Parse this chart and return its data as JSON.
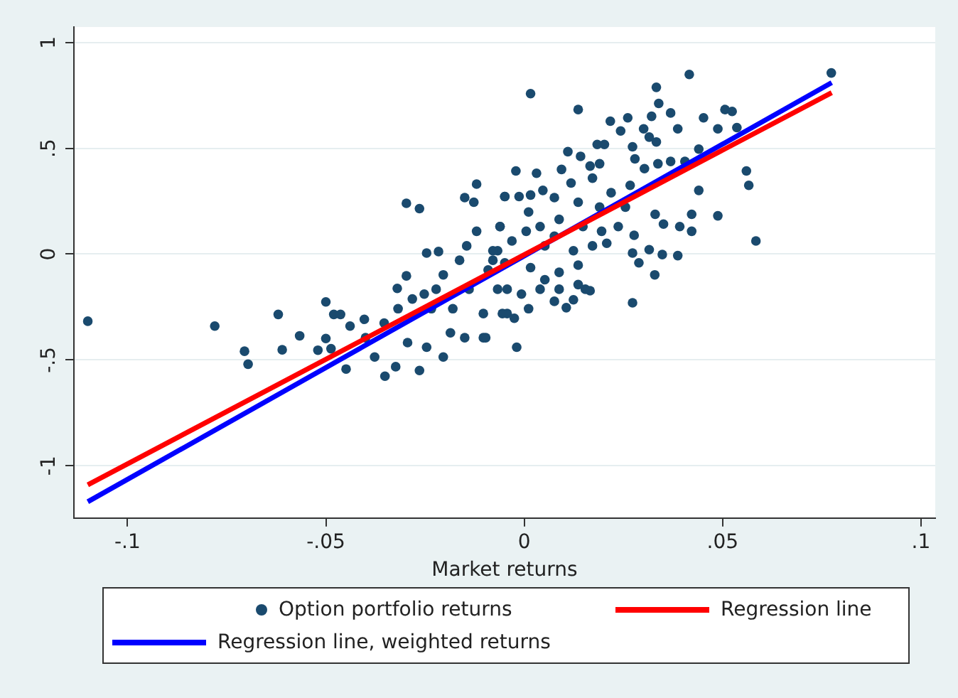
{
  "chart_data": {
    "type": "scatter",
    "xlabel": "Market returns",
    "xlim": [
      -0.1135,
      0.1036
    ],
    "ylim": [
      -1.247,
      1.073
    ],
    "xticks": [
      {
        "value": -0.1,
        "label": "-.1"
      },
      {
        "value": -0.05,
        "label": "-.05"
      },
      0,
      {
        "value": 0.05,
        "label": ".05"
      },
      {
        "value": 0.1,
        "label": ".1"
      }
    ],
    "yticks": [
      -1,
      {
        "value": -0.5,
        "label": "-.5"
      },
      0,
      {
        "value": 0.5,
        "label": ".5"
      },
      1
    ],
    "grid": "y",
    "legend": "bottom",
    "series": [
      {
        "name": "Option portfolio returns",
        "marker": "circle",
        "color": "#1a4a6e",
        "x": [
          -0.11,
          -0.078,
          -0.0705,
          -0.0696,
          -0.062,
          -0.061,
          -0.0566,
          -0.052,
          -0.05,
          -0.05,
          -0.048,
          -0.0463,
          -0.0487,
          -0.0449,
          -0.0439,
          -0.0403,
          -0.0351,
          -0.0324,
          -0.032,
          -0.0297,
          -0.0297,
          -0.0264,
          -0.0264,
          -0.0252,
          -0.0246,
          -0.0216,
          -0.0204,
          -0.0204,
          -0.0186,
          -0.015,
          -0.012,
          -0.0127,
          -0.0049,
          -0.0061,
          -0.012,
          -0.0145,
          -0.0163,
          -0.0139,
          -0.0103,
          -0.015,
          -0.0103,
          -0.018,
          -0.0234,
          -0.0282,
          -0.0318,
          -0.0353,
          -0.04,
          -0.0377,
          -0.0294,
          -0.0246,
          -0.0222,
          -0.0079,
          -0.0043,
          -0.0043,
          -0.0067,
          0.0016,
          0.0136,
          0.0416,
          0.0774,
          0.0333,
          0.0339,
          0.0369,
          0.0452,
          0.0506,
          0.0524,
          0.0488,
          0.0536,
          0.0387,
          0.0217,
          0.0261,
          0.0243,
          0.0301,
          0.0321,
          0.056,
          0.0566,
          0.0584,
          0.044,
          0.0488,
          0.0422,
          0.0422,
          0.0392,
          0.0387,
          0.0348,
          0.0351,
          0.033,
          0.0315,
          0.0329,
          0.0289,
          0.0273,
          0.0273,
          0.0277,
          0.0208,
          0.0255,
          0.0267,
          0.0202,
          0.0184,
          0.019,
          0.0273,
          0.0279,
          0.0303,
          0.0337,
          0.0369,
          0.0405,
          0.044,
          0.0333,
          0.0315,
          0.011,
          0.0142,
          0.0094,
          0.0166,
          -0.0021,
          0.0031,
          0.0118,
          0.0172,
          -0.0049,
          -0.0013,
          0.0016,
          0.0047,
          0.0076,
          0.0136,
          0.019,
          0.0219,
          -0.0061,
          0.0011,
          0.0088,
          0.0148,
          0.0195,
          0.0237,
          -0.0079,
          -0.0031,
          0.0052,
          0.0124,
          0.0172,
          -0.0091,
          -0.0049,
          0.0016,
          0.0088,
          0.0136,
          -0.0067,
          -0.0007,
          0.004,
          0.0088,
          0.0154,
          0.0136,
          0.0166,
          0.0124,
          0.0106,
          0.0076,
          0.0011,
          -0.0025,
          -0.0055,
          -0.0019,
          -0.0097,
          0.0052,
          0.004,
          0.0076,
          0.0005
        ],
        "values": [
          -0.317,
          -0.34,
          -0.459,
          -0.52,
          -0.285,
          -0.452,
          -0.386,
          -0.454,
          -0.226,
          -0.399,
          -0.285,
          -0.285,
          -0.447,
          -0.543,
          -0.34,
          -0.308,
          -0.577,
          -0.532,
          -0.162,
          -0.103,
          0.24,
          0.215,
          -0.55,
          -0.189,
          0.005,
          0.012,
          -0.098,
          -0.486,
          -0.372,
          0.267,
          0.331,
          0.245,
          0.272,
          0.13,
          0.108,
          0.039,
          -0.029,
          -0.166,
          -0.281,
          -0.395,
          -0.395,
          -0.258,
          -0.258,
          -0.212,
          -0.258,
          -0.326,
          -0.395,
          -0.486,
          -0.418,
          -0.44,
          -0.166,
          -0.029,
          -0.166,
          -0.281,
          0.016,
          0.758,
          0.683,
          0.849,
          0.856,
          0.788,
          0.712,
          0.667,
          0.644,
          0.683,
          0.674,
          0.592,
          0.598,
          0.592,
          0.628,
          0.644,
          0.582,
          0.592,
          0.651,
          0.393,
          0.325,
          0.062,
          0.301,
          0.181,
          0.188,
          0.108,
          0.13,
          -0.007,
          -0.002,
          0.142,
          0.188,
          0.021,
          -0.098,
          -0.041,
          0.005,
          -0.23,
          0.089,
          0.051,
          0.222,
          0.325,
          0.518,
          0.518,
          0.427,
          0.507,
          0.45,
          0.404,
          0.427,
          0.438,
          0.438,
          0.496,
          0.53,
          0.553,
          0.484,
          0.462,
          0.4,
          0.416,
          0.393,
          0.382,
          0.336,
          0.359,
          0.272,
          0.272,
          0.279,
          0.301,
          0.267,
          0.245,
          0.222,
          0.29,
          0.13,
          0.199,
          0.164,
          0.13,
          0.108,
          0.13,
          0.016,
          0.062,
          0.039,
          0.016,
          0.039,
          -0.075,
          -0.041,
          -0.064,
          -0.086,
          -0.052,
          -0.166,
          -0.189,
          -0.166,
          -0.166,
          -0.166,
          -0.144,
          -0.173,
          -0.216,
          -0.253,
          -0.223,
          -0.258,
          -0.303,
          -0.281,
          -0.44,
          -0.395,
          -0.121,
          0.13,
          0.085,
          0.108
        ]
      },
      {
        "name": "Regression line",
        "type": "line",
        "color": "#ff0000",
        "x": [
          -0.11,
          0.0775
        ],
        "values": [
          -1.09,
          0.763
        ]
      },
      {
        "name": "Regression line, weighted returns",
        "type": "line",
        "color": "#0000ff",
        "x": [
          -0.11,
          0.0775
        ],
        "values": [
          -1.17,
          0.81
        ]
      }
    ]
  }
}
